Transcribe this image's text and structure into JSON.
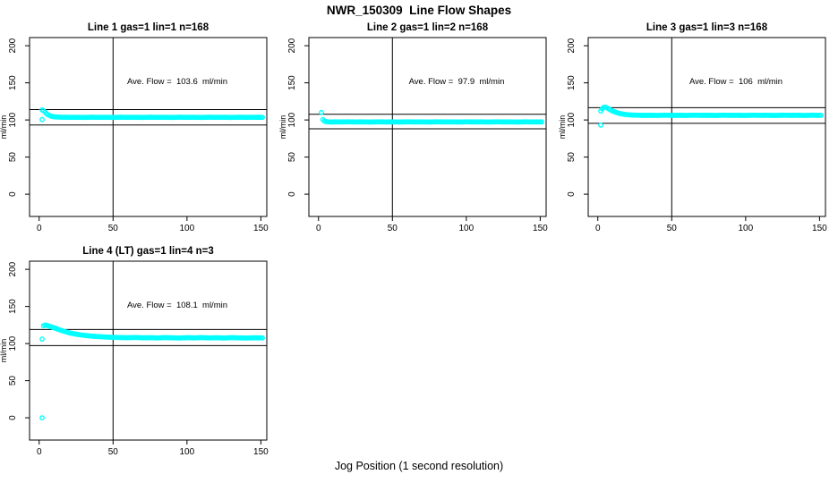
{
  "chart_data": {
    "type": "scatter",
    "title": "NWR_150309  Line Flow Shapes",
    "xlabel": "Jog Position (1 second resolution)",
    "ylabel": "ml/min",
    "point_color": "#00ffff",
    "line_color": "#000000",
    "x_ticks": [
      0,
      50,
      100,
      150
    ],
    "y_ticks": [
      0,
      50,
      100,
      150,
      200
    ],
    "xlim": [
      -6.5,
      154
    ],
    "ylim": [
      -30,
      211
    ],
    "vline_x": 50,
    "subplots": [
      {
        "title": "Line 1 gas=1 lin=1 n=168",
        "annotation": "Ave. Flow =  103.6  ml/min",
        "ave_flow": 103.6,
        "n": 168,
        "ref_lines": {
          "upper": 114.0,
          "lower": 93.2
        },
        "outliers": [
          [
            2,
            100.5
          ]
        ],
        "points": [
          [
            2,
            113.5
          ],
          [
            3,
            112.5
          ],
          [
            4,
            110.5
          ],
          [
            5,
            108.5
          ],
          [
            6,
            107
          ],
          [
            7,
            106
          ],
          [
            8,
            105.2
          ],
          [
            9,
            104.7
          ],
          [
            10,
            104.3
          ],
          [
            12,
            104
          ],
          [
            14,
            103.8
          ],
          [
            16,
            103.6
          ],
          [
            18,
            103.7
          ],
          [
            20,
            103.5
          ],
          [
            25,
            103.6
          ],
          [
            30,
            103.4
          ],
          [
            35,
            103.7
          ],
          [
            40,
            103.5
          ],
          [
            45,
            103.6
          ],
          [
            50,
            103.4
          ],
          [
            55,
            103.7
          ],
          [
            60,
            103.5
          ],
          [
            65,
            103.6
          ],
          [
            70,
            103.4
          ],
          [
            75,
            103.7
          ],
          [
            80,
            103.5
          ],
          [
            85,
            103.6
          ],
          [
            90,
            103.4
          ],
          [
            95,
            103.7
          ],
          [
            100,
            103.5
          ],
          [
            105,
            103.6
          ],
          [
            110,
            103.4
          ],
          [
            115,
            103.7
          ],
          [
            120,
            103.5
          ],
          [
            125,
            103.6
          ],
          [
            130,
            103.4
          ],
          [
            135,
            103.7
          ],
          [
            140,
            103.5
          ],
          [
            145,
            103.6
          ],
          [
            151,
            103.5
          ]
        ]
      },
      {
        "title": "Line 2 gas=1 lin=2 n=168",
        "annotation": "Ave. Flow =  97.9  ml/min",
        "ave_flow": 97.9,
        "n": 168,
        "ref_lines": {
          "upper": 107.7,
          "lower": 88.1
        },
        "outliers": [],
        "points": [
          [
            2,
            110
          ],
          [
            3,
            100.5
          ],
          [
            4,
            98.5
          ],
          [
            5,
            97.8
          ],
          [
            6,
            97.5
          ],
          [
            8,
            97.3
          ],
          [
            10,
            97.4
          ],
          [
            15,
            97.3
          ],
          [
            20,
            97.5
          ],
          [
            25,
            97.3
          ],
          [
            30,
            97.4
          ],
          [
            35,
            97.2
          ],
          [
            40,
            97.5
          ],
          [
            45,
            97.3
          ],
          [
            50,
            97.4
          ],
          [
            55,
            97.2
          ],
          [
            60,
            97.5
          ],
          [
            65,
            97.3
          ],
          [
            70,
            97.4
          ],
          [
            75,
            97.2
          ],
          [
            80,
            97.5
          ],
          [
            85,
            97.3
          ],
          [
            90,
            97.4
          ],
          [
            95,
            97.2
          ],
          [
            100,
            97.5
          ],
          [
            105,
            97.3
          ],
          [
            110,
            97.4
          ],
          [
            115,
            97.2
          ],
          [
            120,
            97.5
          ],
          [
            125,
            97.3
          ],
          [
            130,
            97.4
          ],
          [
            135,
            97.2
          ],
          [
            140,
            97.5
          ],
          [
            145,
            97.3
          ],
          [
            151,
            97.4
          ]
        ]
      },
      {
        "title": "Line 3 gas=1 lin=3 n=168",
        "annotation": "Ave. Flow =  106  ml/min",
        "ave_flow": 106,
        "n": 168,
        "ref_lines": {
          "upper": 116.6,
          "lower": 95.4
        },
        "outliers": [
          [
            2,
            93
          ]
        ],
        "points": [
          [
            2,
            112
          ],
          [
            3,
            115
          ],
          [
            4,
            117
          ],
          [
            5,
            117.3
          ],
          [
            6,
            116.5
          ],
          [
            7,
            115.2
          ],
          [
            8,
            114
          ],
          [
            9,
            113
          ],
          [
            10,
            112
          ],
          [
            11,
            111.2
          ],
          [
            12,
            110.5
          ],
          [
            13,
            109.8
          ],
          [
            14,
            109.2
          ],
          [
            15,
            108.7
          ],
          [
            16,
            108.3
          ],
          [
            18,
            107.6
          ],
          [
            20,
            107.1
          ],
          [
            22,
            106.8
          ],
          [
            25,
            106.5
          ],
          [
            30,
            106.2
          ],
          [
            35,
            106.3
          ],
          [
            40,
            106.1
          ],
          [
            45,
            106.4
          ],
          [
            50,
            106.2
          ],
          [
            55,
            106.3
          ],
          [
            60,
            106.1
          ],
          [
            65,
            106.4
          ],
          [
            70,
            106.2
          ],
          [
            75,
            106.3
          ],
          [
            80,
            106.1
          ],
          [
            85,
            106.4
          ],
          [
            90,
            106.2
          ],
          [
            95,
            106.3
          ],
          [
            100,
            106.1
          ],
          [
            105,
            106.4
          ],
          [
            110,
            106.2
          ],
          [
            115,
            106.3
          ],
          [
            120,
            106.1
          ],
          [
            125,
            106.4
          ],
          [
            130,
            106.2
          ],
          [
            135,
            106.3
          ],
          [
            140,
            106.1
          ],
          [
            145,
            106.4
          ],
          [
            151,
            106.2
          ]
        ]
      },
      {
        "title": "Line 4 (LT) gas=1 lin=4 n=3",
        "annotation": "Ave. Flow =  108.1  ml/min",
        "ave_flow": 108.1,
        "n": 3,
        "ref_lines": {
          "upper": 118.9,
          "lower": 97.3
        },
        "outliers": [
          [
            2,
            0
          ],
          [
            2,
            106
          ]
        ],
        "points": [
          [
            3,
            124
          ],
          [
            4,
            125
          ],
          [
            5,
            124.6
          ],
          [
            6,
            124
          ],
          [
            7,
            123.3
          ],
          [
            8,
            122.6
          ],
          [
            9,
            122
          ],
          [
            10,
            121.3
          ],
          [
            12,
            119.8
          ],
          [
            14,
            118.4
          ],
          [
            16,
            117
          ],
          [
            18,
            115.8
          ],
          [
            20,
            114.7
          ],
          [
            22,
            113.8
          ],
          [
            24,
            113
          ],
          [
            26,
            112.3
          ],
          [
            28,
            111.7
          ],
          [
            30,
            111.2
          ],
          [
            33,
            110.5
          ],
          [
            36,
            110
          ],
          [
            39,
            109.5
          ],
          [
            42,
            109.1
          ],
          [
            45,
            108.8
          ],
          [
            48,
            108.5
          ],
          [
            50,
            108.4
          ],
          [
            55,
            108.1
          ],
          [
            60,
            107.9
          ],
          [
            65,
            108.2
          ],
          [
            70,
            107.8
          ],
          [
            75,
            108
          ],
          [
            80,
            107.6
          ],
          [
            85,
            108.1
          ],
          [
            90,
            107.8
          ],
          [
            95,
            107.5
          ],
          [
            100,
            108
          ],
          [
            105,
            107.7
          ],
          [
            110,
            108.1
          ],
          [
            115,
            107.6
          ],
          [
            120,
            107.9
          ],
          [
            125,
            107.5
          ],
          [
            130,
            108
          ],
          [
            135,
            107.7
          ],
          [
            140,
            107.5
          ],
          [
            145,
            107.8
          ],
          [
            151,
            107.6
          ]
        ]
      }
    ]
  }
}
